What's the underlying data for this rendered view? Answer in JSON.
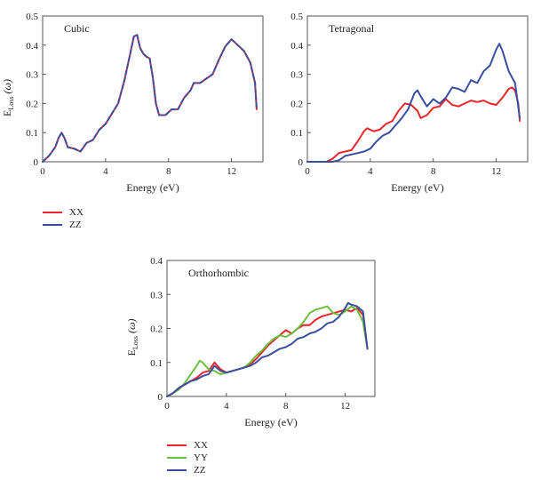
{
  "chart_data": [
    {
      "type": "line",
      "title": "Cubic",
      "xlabel": "Energy (eV)",
      "ylabel_main": "E",
      "ylabel_sub": "Loss",
      "ylabel_tail": " (ω)",
      "xlim": [
        0,
        14
      ],
      "ylim": [
        0,
        0.5
      ],
      "xticks": [
        0,
        4,
        8,
        12
      ],
      "yticks": [
        0,
        0.1,
        0.2,
        0.3,
        0.4,
        0.5
      ],
      "legend": "below",
      "series": [
        {
          "name": "XX",
          "color": "#e8262a",
          "dash": false,
          "x": [
            0,
            0.4,
            0.8,
            1.0,
            1.2,
            1.4,
            1.6,
            2.0,
            2.4,
            2.8,
            3.2,
            3.6,
            4.0,
            4.4,
            4.8,
            5.2,
            5.6,
            5.8,
            6.0,
            6.2,
            6.4,
            6.6,
            6.8,
            7.0,
            7.2,
            7.4,
            7.8,
            8.2,
            8.6,
            9.0,
            9.4,
            9.6,
            10.0,
            10.4,
            10.8,
            11.2,
            11.6,
            12.0,
            12.4,
            12.8,
            13.2,
            13.5,
            13.6
          ],
          "y": [
            0.0,
            0.02,
            0.05,
            0.08,
            0.1,
            0.08,
            0.05,
            0.045,
            0.035,
            0.065,
            0.075,
            0.11,
            0.13,
            0.165,
            0.2,
            0.28,
            0.38,
            0.43,
            0.435,
            0.39,
            0.37,
            0.36,
            0.355,
            0.29,
            0.2,
            0.16,
            0.16,
            0.18,
            0.18,
            0.22,
            0.245,
            0.27,
            0.27,
            0.285,
            0.3,
            0.35,
            0.395,
            0.42,
            0.4,
            0.38,
            0.34,
            0.27,
            0.18
          ]
        },
        {
          "name": "ZZ",
          "color": "#3a4ea0",
          "dash": true,
          "x": [
            0,
            0.4,
            0.8,
            1.0,
            1.2,
            1.4,
            1.6,
            2.0,
            2.4,
            2.8,
            3.2,
            3.6,
            4.0,
            4.4,
            4.8,
            5.2,
            5.6,
            5.8,
            6.0,
            6.2,
            6.4,
            6.6,
            6.8,
            7.0,
            7.2,
            7.4,
            7.8,
            8.2,
            8.6,
            9.0,
            9.4,
            9.6,
            10.0,
            10.4,
            10.8,
            11.2,
            11.6,
            12.0,
            12.4,
            12.8,
            13.2,
            13.5,
            13.6
          ],
          "y": [
            0.0,
            0.02,
            0.05,
            0.08,
            0.1,
            0.08,
            0.05,
            0.045,
            0.035,
            0.065,
            0.075,
            0.11,
            0.13,
            0.165,
            0.2,
            0.28,
            0.38,
            0.43,
            0.435,
            0.39,
            0.37,
            0.36,
            0.355,
            0.29,
            0.2,
            0.16,
            0.16,
            0.18,
            0.18,
            0.22,
            0.245,
            0.27,
            0.27,
            0.285,
            0.3,
            0.35,
            0.395,
            0.42,
            0.4,
            0.38,
            0.34,
            0.27,
            0.18
          ]
        }
      ]
    },
    {
      "type": "line",
      "title": "Tetragonal",
      "xlabel": "Energy (eV)",
      "ylabel_main": "",
      "ylabel_sub": "",
      "ylabel_tail": "",
      "xlim": [
        0,
        14
      ],
      "ylim": [
        0,
        0.5
      ],
      "xticks": [
        0,
        4,
        8,
        12
      ],
      "yticks": [
        0,
        0.1,
        0.2,
        0.3,
        0.4,
        0.5
      ],
      "legend": "none",
      "series": [
        {
          "name": "",
          "color": "#e8262a",
          "dash": false,
          "x": [
            0,
            1.2,
            1.6,
            2.0,
            2.4,
            2.8,
            3.2,
            3.6,
            3.8,
            4.2,
            4.6,
            5.0,
            5.4,
            5.8,
            6.2,
            6.6,
            7.0,
            7.2,
            7.6,
            8.0,
            8.4,
            8.8,
            9.2,
            9.6,
            10.0,
            10.4,
            10.8,
            11.2,
            11.6,
            12.0,
            12.4,
            12.8,
            13.0,
            13.2,
            13.4,
            13.5
          ],
          "y": [
            0,
            0,
            0.01,
            0.03,
            0.035,
            0.04,
            0.07,
            0.105,
            0.115,
            0.105,
            0.11,
            0.13,
            0.14,
            0.175,
            0.2,
            0.195,
            0.175,
            0.15,
            0.16,
            0.185,
            0.19,
            0.215,
            0.195,
            0.19,
            0.2,
            0.21,
            0.205,
            0.21,
            0.2,
            0.195,
            0.22,
            0.25,
            0.255,
            0.245,
            0.2,
            0.14
          ]
        },
        {
          "name": "",
          "color": "#3a4ea0",
          "dash": false,
          "x": [
            0,
            1.6,
            2.0,
            2.4,
            2.8,
            3.2,
            3.6,
            4.0,
            4.4,
            4.8,
            5.2,
            5.6,
            6.0,
            6.4,
            6.8,
            7.0,
            7.2,
            7.6,
            8.0,
            8.4,
            8.8,
            9.2,
            9.6,
            10.0,
            10.4,
            10.8,
            11.2,
            11.6,
            12.0,
            12.2,
            12.4,
            12.8,
            13.2,
            13.5
          ],
          "y": [
            0,
            0,
            0.005,
            0.02,
            0.025,
            0.03,
            0.035,
            0.045,
            0.07,
            0.09,
            0.1,
            0.125,
            0.15,
            0.18,
            0.235,
            0.245,
            0.225,
            0.19,
            0.215,
            0.2,
            0.22,
            0.255,
            0.25,
            0.24,
            0.28,
            0.27,
            0.31,
            0.33,
            0.385,
            0.405,
            0.38,
            0.31,
            0.27,
            0.15
          ]
        }
      ]
    },
    {
      "type": "line",
      "title": "Orthorhombic",
      "xlabel": "Energy (eV)",
      "ylabel_main": "E",
      "ylabel_sub": "Loss",
      "ylabel_tail": " (ω)",
      "xlim": [
        0,
        14
      ],
      "ylim": [
        0,
        0.4
      ],
      "xticks": [
        0,
        4,
        8,
        12
      ],
      "yticks": [
        0,
        0.1,
        0.2,
        0.3,
        0.4
      ],
      "legend": "below",
      "series": [
        {
          "name": "XX",
          "color": "#e8262a",
          "dash": false,
          "x": [
            0,
            0.4,
            0.8,
            1.2,
            1.6,
            2.0,
            2.4,
            2.8,
            3.2,
            3.6,
            4.0,
            4.4,
            4.8,
            5.2,
            5.6,
            6.0,
            6.4,
            6.8,
            7.2,
            7.6,
            8.0,
            8.4,
            8.8,
            9.2,
            9.6,
            10.0,
            10.4,
            10.8,
            11.2,
            11.6,
            12.0,
            12.4,
            12.8,
            13.2,
            13.5
          ],
          "y": [
            0,
            0.01,
            0.025,
            0.035,
            0.045,
            0.055,
            0.07,
            0.075,
            0.1,
            0.08,
            0.07,
            0.075,
            0.08,
            0.085,
            0.095,
            0.11,
            0.13,
            0.15,
            0.165,
            0.18,
            0.195,
            0.185,
            0.2,
            0.21,
            0.21,
            0.225,
            0.235,
            0.24,
            0.245,
            0.25,
            0.255,
            0.25,
            0.26,
            0.24,
            0.14
          ]
        },
        {
          "name": "YY",
          "color": "#6bbf3f",
          "dash": false,
          "x": [
            0,
            0.4,
            0.8,
            1.2,
            1.6,
            2.0,
            2.2,
            2.4,
            2.8,
            3.2,
            3.6,
            4.0,
            4.4,
            4.8,
            5.2,
            5.6,
            6.0,
            6.4,
            6.8,
            7.2,
            7.6,
            8.0,
            8.4,
            8.8,
            9.2,
            9.6,
            10.0,
            10.4,
            10.8,
            11.2,
            11.6,
            12.0,
            12.4,
            12.8,
            13.2,
            13.5
          ],
          "y": [
            0,
            0.01,
            0.02,
            0.04,
            0.065,
            0.09,
            0.105,
            0.1,
            0.08,
            0.075,
            0.065,
            0.07,
            0.075,
            0.08,
            0.085,
            0.1,
            0.12,
            0.135,
            0.155,
            0.17,
            0.18,
            0.175,
            0.185,
            0.2,
            0.22,
            0.245,
            0.255,
            0.26,
            0.265,
            0.245,
            0.24,
            0.25,
            0.265,
            0.255,
            0.22,
            0.14
          ]
        },
        {
          "name": "ZZ",
          "color": "#3a4ea0",
          "dash": false,
          "x": [
            0,
            0.4,
            0.8,
            1.2,
            1.6,
            2.0,
            2.4,
            2.8,
            3.2,
            3.6,
            4.0,
            4.4,
            4.8,
            5.2,
            5.6,
            6.0,
            6.4,
            6.8,
            7.2,
            7.6,
            8.0,
            8.4,
            8.8,
            9.2,
            9.6,
            10.0,
            10.4,
            10.8,
            11.2,
            11.6,
            12.0,
            12.2,
            12.4,
            12.8,
            13.2,
            13.5
          ],
          "y": [
            0,
            0.01,
            0.025,
            0.035,
            0.045,
            0.05,
            0.06,
            0.065,
            0.09,
            0.075,
            0.07,
            0.075,
            0.08,
            0.085,
            0.09,
            0.1,
            0.115,
            0.12,
            0.13,
            0.14,
            0.145,
            0.155,
            0.17,
            0.175,
            0.185,
            0.19,
            0.2,
            0.215,
            0.22,
            0.235,
            0.26,
            0.275,
            0.27,
            0.265,
            0.25,
            0.14
          ]
        }
      ]
    }
  ]
}
